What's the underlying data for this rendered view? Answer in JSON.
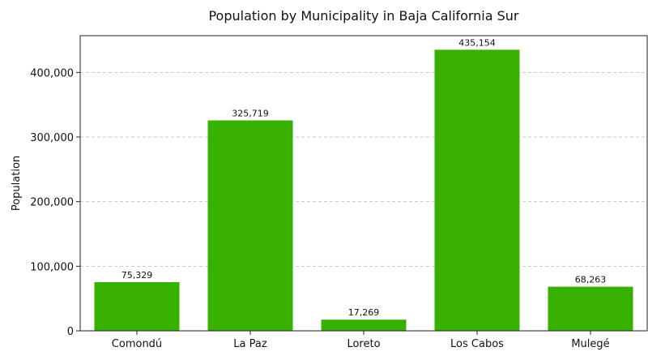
{
  "chart_data": {
    "type": "bar",
    "title": "Population by Municipality in Baja California Sur",
    "xlabel": "",
    "ylabel": "Population",
    "categories": [
      "Comondú",
      "La Paz",
      "Loreto",
      "Los Cabos",
      "Mulegé"
    ],
    "values": [
      75329,
      325719,
      17269,
      435154,
      68263
    ],
    "value_labels": [
      "75,329",
      "325,719",
      "17,269",
      "435,154",
      "68,263"
    ],
    "ylim": [
      0,
      456912
    ],
    "yticks": [
      0,
      100000,
      200000,
      300000,
      400000
    ],
    "ytick_labels": [
      "0",
      "100,000",
      "200,000",
      "300,000",
      "400,000"
    ],
    "grid": true,
    "bar_color": "#38b000"
  }
}
